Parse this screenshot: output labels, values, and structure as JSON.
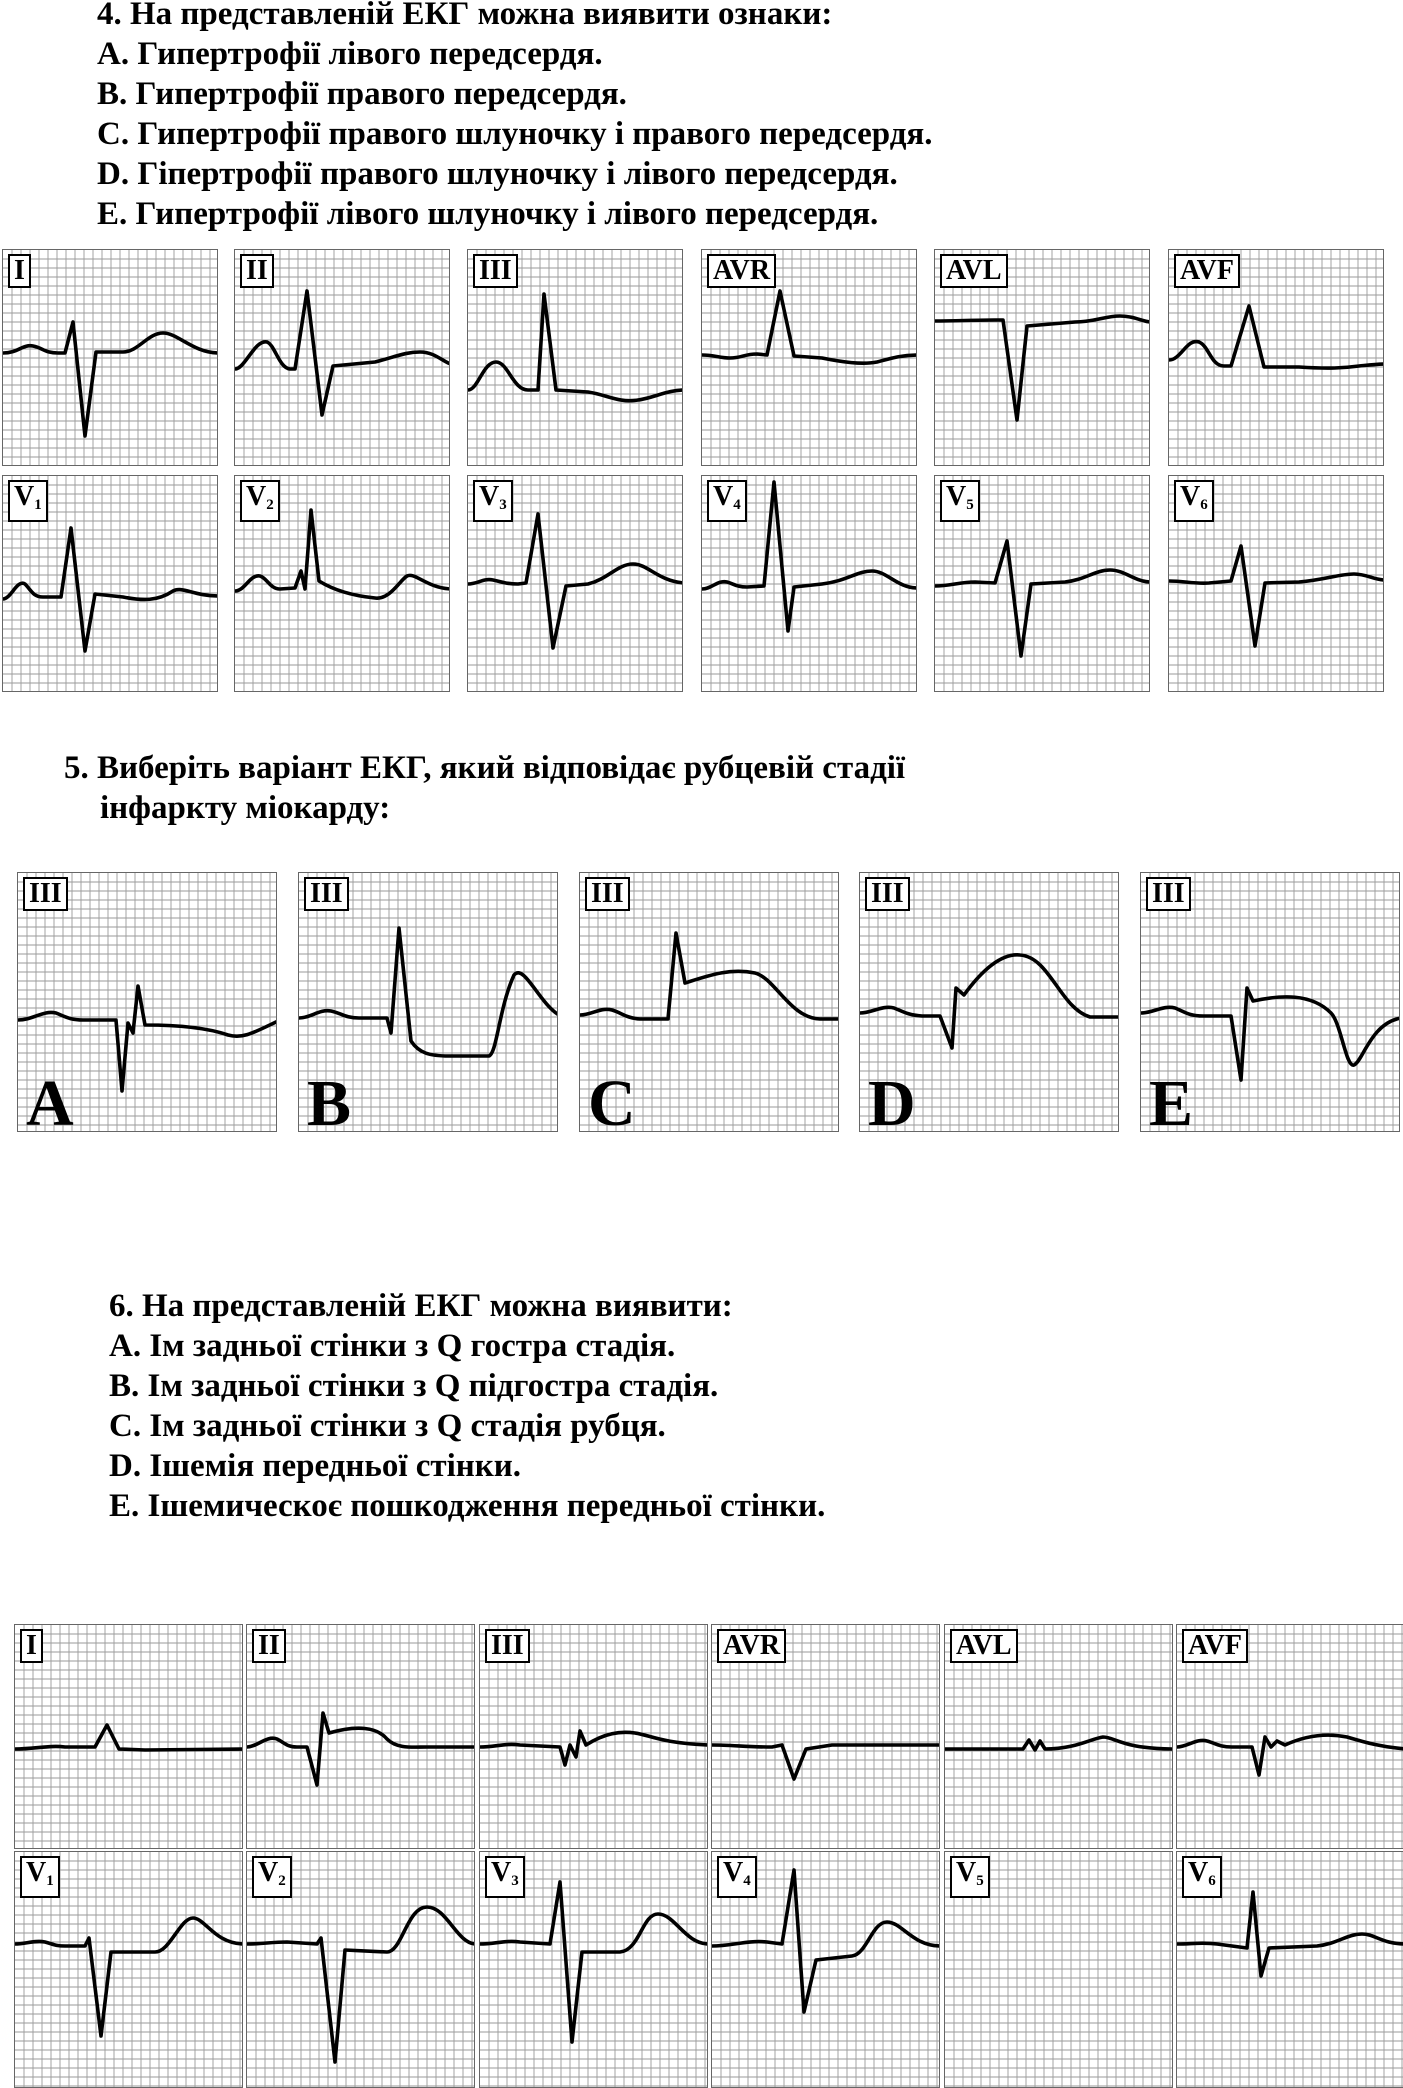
{
  "question4": {
    "title": "4. На представленій ЕКГ можна виявити ознаки:",
    "options": [
      "A. Гипертрофії лівого передсердя.",
      "B. Гипертрофії правого передсердя.",
      "C. Гипертрофії правого шлуночку і правого передсердя.",
      "D. Гіпертрофії правого шлуночку і лівого передсердя.",
      "E. Гипертрофії лівого шлуночку і лівого передсердя."
    ],
    "leads_row1": [
      "I",
      "II",
      "III",
      "AVR",
      "AVL",
      "AVF"
    ],
    "leads_row2": [
      {
        "base": "V",
        "sub": "1"
      },
      {
        "base": "V",
        "sub": "2"
      },
      {
        "base": "V",
        "sub": "3"
      },
      {
        "base": "V",
        "sub": "4"
      },
      {
        "base": "V",
        "sub": "5"
      },
      {
        "base": "V",
        "sub": "6"
      }
    ]
  },
  "question5": {
    "title_line1": "5. Виберіть варіант ЕКГ, який відповідає рубцевій стадії",
    "title_line2": "інфаркту міокарду:",
    "panels": [
      {
        "lead": "III",
        "letter": "A"
      },
      {
        "lead": "III",
        "letter": "B"
      },
      {
        "lead": "III",
        "letter": "C"
      },
      {
        "lead": "III",
        "letter": "D"
      },
      {
        "lead": "III",
        "letter": "E"
      }
    ]
  },
  "question6": {
    "title": "6. На представленій ЕКГ можна виявити:",
    "options": [
      "A. Ім задньої стінки з Q гостра стадія.",
      "B. Ім задньої стінки з Q підгостра стадія.",
      "C. Ім задньої стінки з Q стадія рубця.",
      "D. Ішемія передньої стінки.",
      "E. Ішемическоє пошкодження передньої стінки."
    ],
    "leads_row1": [
      "I",
      "II",
      "III",
      "AVR",
      "AVL",
      "AVF"
    ],
    "leads_row2": [
      {
        "base": "V",
        "sub": "1"
      },
      {
        "base": "V",
        "sub": "2"
      },
      {
        "base": "V",
        "sub": "3"
      },
      {
        "base": "V",
        "sub": "4"
      },
      {
        "base": "V",
        "sub": "5"
      },
      {
        "base": "V",
        "sub": "6"
      }
    ]
  }
}
